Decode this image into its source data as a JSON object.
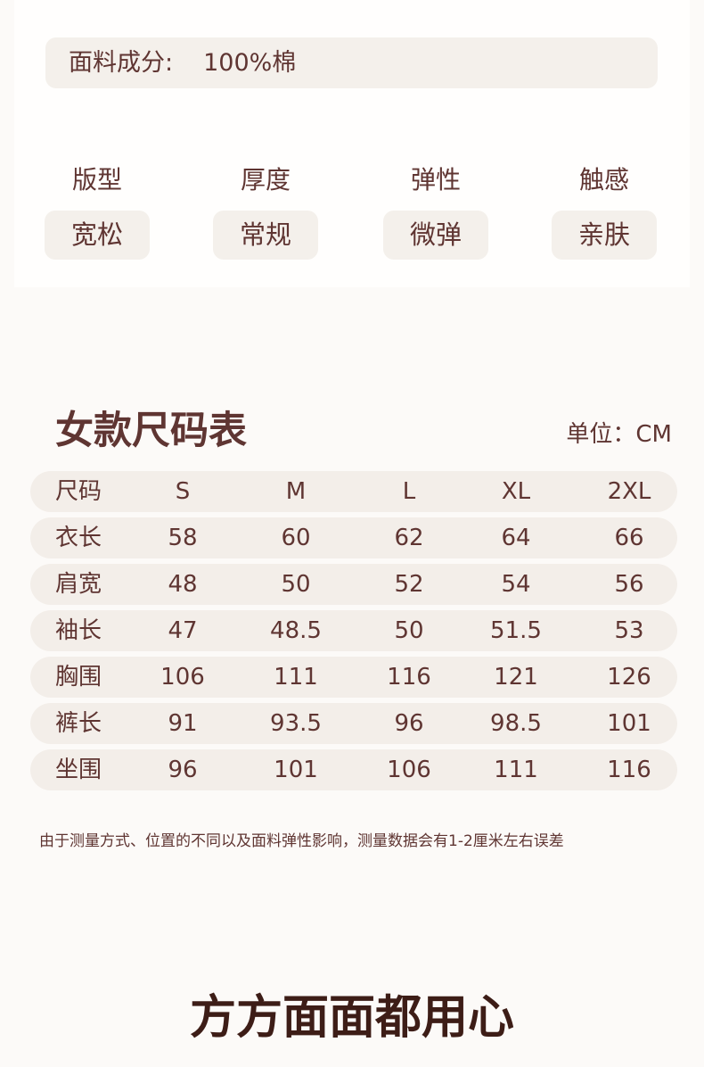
{
  "fabric": {
    "label": "面料成分:",
    "value": "100%棉"
  },
  "attributes": [
    {
      "label": "版型",
      "value": "宽松"
    },
    {
      "label": "厚度",
      "value": "常规"
    },
    {
      "label": "弹性",
      "value": "微弹"
    },
    {
      "label": "触感",
      "value": "亲肤"
    }
  ],
  "size_chart": {
    "title": "女款尺码表",
    "unit": "单位：CM",
    "header": [
      "尺码",
      "S",
      "M",
      "L",
      "XL",
      "2XL"
    ],
    "rows": [
      [
        "衣长",
        "58",
        "60",
        "62",
        "64",
        "66"
      ],
      [
        "肩宽",
        "48",
        "50",
        "52",
        "54",
        "56"
      ],
      [
        "袖长",
        "47",
        "48.5",
        "50",
        "51.5",
        "53"
      ],
      [
        "胸围",
        "106",
        "111",
        "116",
        "121",
        "126"
      ],
      [
        "裤长",
        "91",
        "93.5",
        "96",
        "98.5",
        "101"
      ],
      [
        "坐围",
        "96",
        "101",
        "106",
        "111",
        "116"
      ]
    ],
    "note": "由于测量方式、位置的不同以及面料弹性影响，测量数据会有1-2厘米左右误差"
  },
  "slogan": "方方面面都用心",
  "colors": {
    "text": "#5f3532",
    "row_bg": "#f3eee9",
    "background": "#fcfaf8"
  }
}
